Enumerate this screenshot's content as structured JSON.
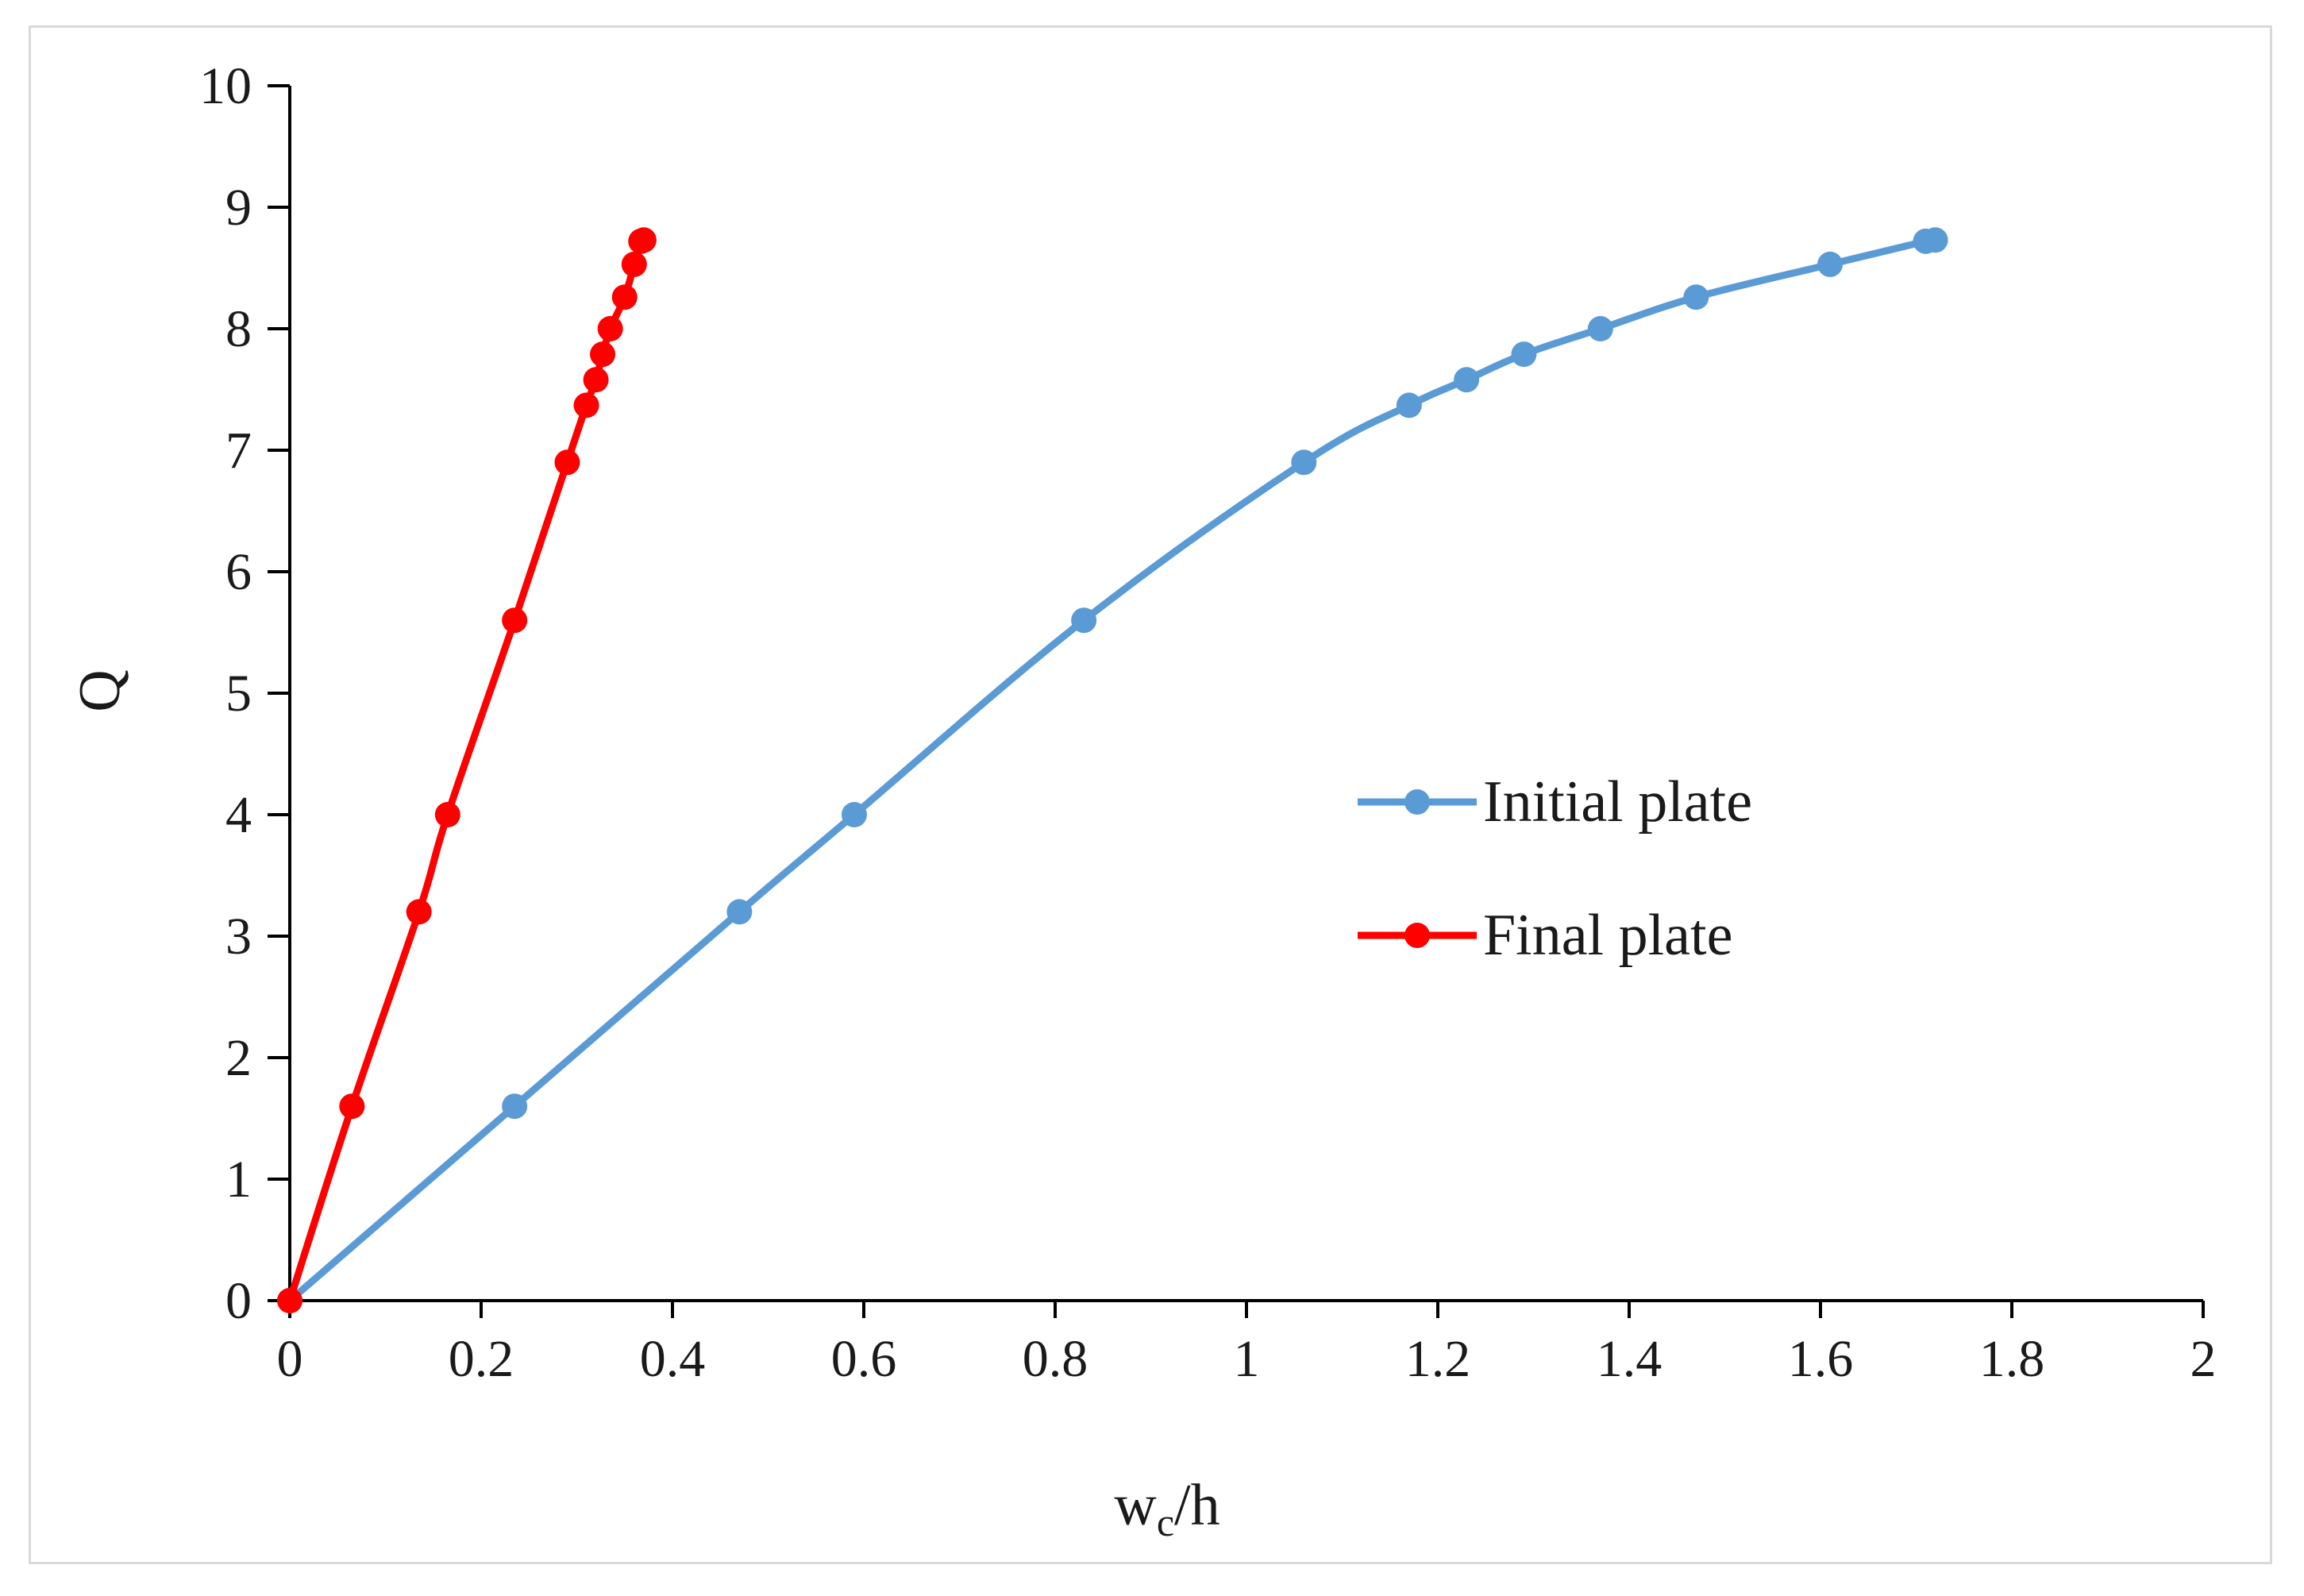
{
  "chart_data": {
    "type": "line",
    "title": "",
    "xlabel": {
      "main": "w",
      "sub": "c",
      "suffix": "/h"
    },
    "ylabel": "Q",
    "xlim": [
      0,
      2
    ],
    "ylim": [
      0,
      10
    ],
    "x_ticks": [
      0,
      0.2,
      0.4,
      0.6,
      0.8,
      1,
      1.2,
      1.4,
      1.6,
      1.8,
      2
    ],
    "x_tick_labels": [
      "0",
      "0.2",
      "0.4",
      "0.6",
      "0.8",
      "1",
      "1.2",
      "1.4",
      "1.6",
      "1.8",
      "2"
    ],
    "y_ticks": [
      0,
      1,
      2,
      3,
      4,
      5,
      6,
      7,
      8,
      9,
      10
    ],
    "y_tick_labels": [
      "0",
      "1",
      "2",
      "3",
      "4",
      "5",
      "6",
      "7",
      "8",
      "9",
      "10"
    ],
    "grid": false,
    "legend_position": "center-right",
    "series": [
      {
        "name": "Initial plate",
        "color": "#5b9bd5",
        "x": [
          0,
          0.235,
          0.47,
          0.59,
          0.83,
          1.06,
          1.17,
          1.23,
          1.29,
          1.37,
          1.47,
          1.61,
          1.71,
          1.72
        ],
        "y": [
          0,
          1.6,
          3.2,
          4.0,
          5.6,
          6.9,
          7.37,
          7.58,
          7.79,
          8.0,
          8.26,
          8.53,
          8.72,
          8.73
        ]
      },
      {
        "name": "Final plate",
        "color": "#ff0000",
        "x": [
          0,
          0.065,
          0.135,
          0.165,
          0.235,
          0.29,
          0.31,
          0.32,
          0.327,
          0.335,
          0.35,
          0.36,
          0.367,
          0.37
        ],
        "y": [
          0,
          1.6,
          3.2,
          4.0,
          5.6,
          6.9,
          7.37,
          7.58,
          7.79,
          8.0,
          8.26,
          8.53,
          8.72,
          8.73
        ]
      }
    ]
  }
}
